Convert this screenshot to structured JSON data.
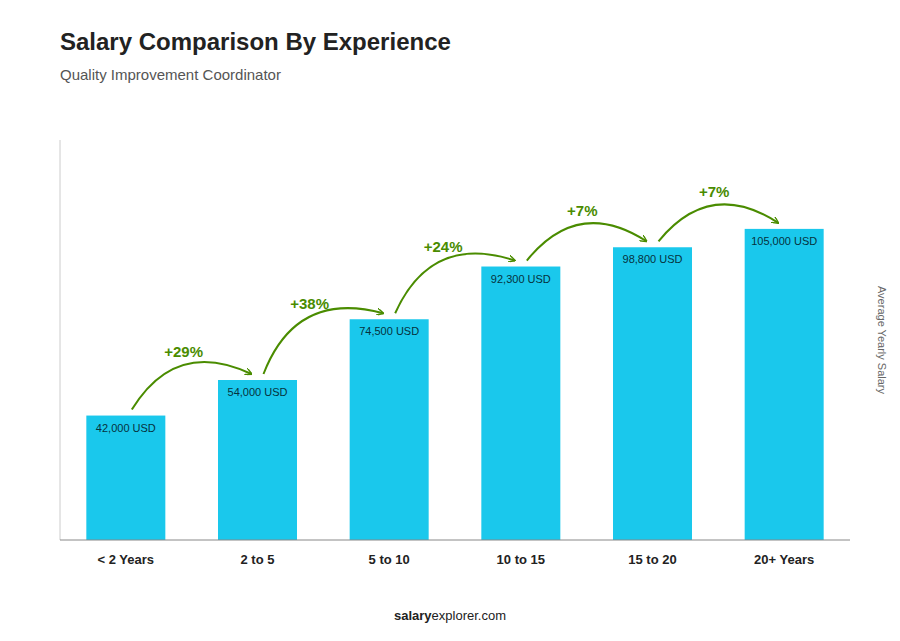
{
  "chart_data": {
    "type": "bar",
    "title": "Salary Comparison By Experience",
    "subtitle": "Quality Improvement Coordinator",
    "ylabel": "Average Yearly Salary",
    "categories": [
      "< 2 Years",
      "2 to 5",
      "5 to 10",
      "10 to 15",
      "15 to 20",
      "20+ Years"
    ],
    "values": [
      42000,
      54000,
      74500,
      92300,
      98800,
      105000
    ],
    "value_labels": [
      "42,000 USD",
      "54,000 USD",
      "74,500 USD",
      "92,300 USD",
      "98,800 USD",
      "105,000 USD"
    ],
    "data_labels": true,
    "color": "#1AC8EC",
    "ylim": [
      0,
      135000
    ],
    "tick_labels": "x",
    "grid": false,
    "annotations": [
      {
        "text": "+29%",
        "from": "< 2 Years",
        "to": "2 to 5"
      },
      {
        "text": "+38%",
        "from": "2 to 5",
        "to": "5 to 10"
      },
      {
        "text": "+24%",
        "from": "5 to 10",
        "to": "10 to 15"
      },
      {
        "text": "+7%",
        "from": "10 to 15",
        "to": "15 to 20"
      },
      {
        "text": "+7%",
        "from": "15 to 20",
        "to": "20+ Years"
      }
    ],
    "footer": [
      "salary",
      "explorer.com"
    ]
  }
}
